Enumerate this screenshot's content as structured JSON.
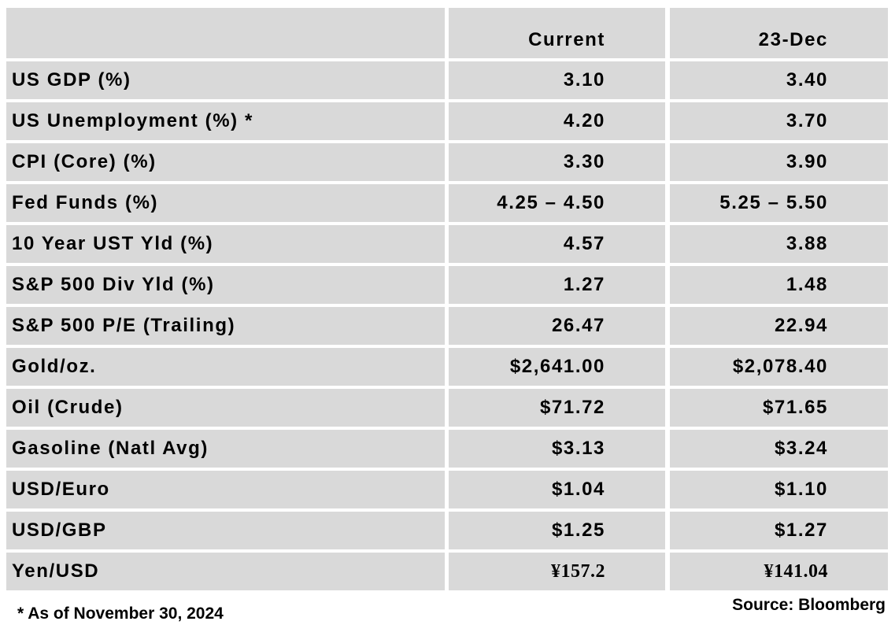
{
  "header": {
    "label": "",
    "current": "Current",
    "previous": "23-Dec"
  },
  "rows": [
    {
      "label": "US GDP (%)",
      "current": "3.10",
      "previous": "3.40"
    },
    {
      "label": "US Unemployment (%) *",
      "current": "4.20",
      "previous": "3.70"
    },
    {
      "label": "CPI (Core) (%)",
      "current": "3.30",
      "previous": "3.90"
    },
    {
      "label": "Fed Funds (%)",
      "current": "4.25 – 4.50",
      "previous": "5.25 – 5.50"
    },
    {
      "label": "10 Year UST Yld (%)",
      "current": "4.57",
      "previous": "3.88"
    },
    {
      "label": "S&P 500 Div Yld (%)",
      "current": "1.27",
      "previous": "1.48"
    },
    {
      "label": "S&P 500 P/E (Trailing)",
      "current": "26.47",
      "previous": "22.94"
    },
    {
      "label": "Gold/oz.",
      "current": "$2,641.00",
      "previous": "$2,078.40"
    },
    {
      "label": "Oil (Crude)",
      "current": "$71.72",
      "previous": "$71.65"
    },
    {
      "label": "Gasoline (Natl Avg)",
      "current": "$3.13",
      "previous": "$3.24"
    },
    {
      "label": "USD/Euro",
      "current": "$1.04",
      "previous": "$1.10"
    },
    {
      "label": "USD/GBP",
      "current": "$1.25",
      "previous": "$1.27"
    },
    {
      "label": "Yen/USD",
      "current": "¥157.2",
      "previous": "¥141.04"
    }
  ],
  "footnote": "* As of November 30, 2024",
  "source": "Source: Bloomberg",
  "colors": {
    "cell_background": "#d9d9d9",
    "text": "#000000",
    "page_background": "#ffffff"
  }
}
